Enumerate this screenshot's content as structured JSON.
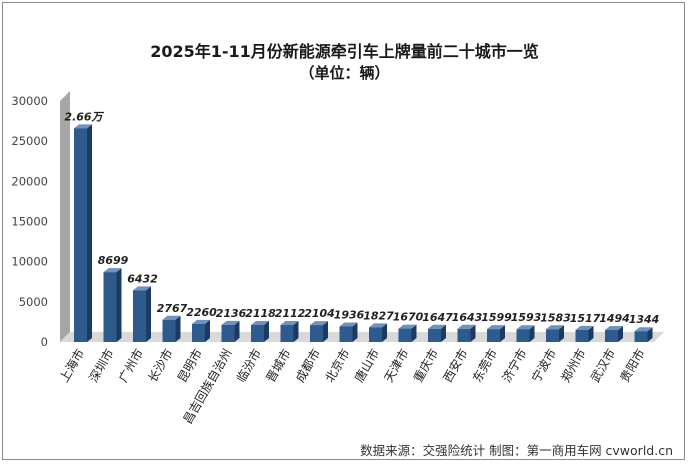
{
  "chart_data": {
    "type": "bar",
    "title": "2025年1-11月份新能源牵引车上牌量前二十城市一览",
    "subtitle": "（单位：辆）",
    "categories": [
      "上海市",
      "深圳市",
      "广州市",
      "长沙市",
      "昆明市",
      "昌吉回族自治州",
      "临汾市",
      "晋城市",
      "成都市",
      "北京市",
      "唐山市",
      "天津市",
      "重庆市",
      "西安市",
      "东莞市",
      "济宁市",
      "宁波市",
      "郑州市",
      "武汉市",
      "贵阳市"
    ],
    "values": [
      26600,
      8699,
      6432,
      2767,
      2260,
      2136,
      2118,
      2112,
      2104,
      1936,
      1827,
      1670,
      1647,
      1643,
      1599,
      1593,
      1583,
      1517,
      1494,
      1344
    ],
    "data_labels": [
      "2.66万",
      "8699",
      "6432",
      "2767",
      "2260",
      "2136",
      "2118",
      "2112",
      "2104",
      "1936",
      "1827",
      "1670",
      "1647",
      "1643",
      "1599",
      "1593",
      "1583",
      "1517",
      "1494",
      "1344"
    ],
    "y_ticks": [
      "0",
      "5000",
      "10000",
      "15000",
      "20000",
      "25000",
      "30000"
    ],
    "ylim": [
      0,
      30000
    ],
    "grid": false,
    "legend": "none",
    "colors": {
      "bar_front": "#2e5a8e",
      "bar_side": "#1c3b62",
      "bar_top": "#6d93c2",
      "wall": "#a6a6a6"
    }
  },
  "source": "数据来源：交强险统计 制图：第一商用车网 cvworld.cn"
}
